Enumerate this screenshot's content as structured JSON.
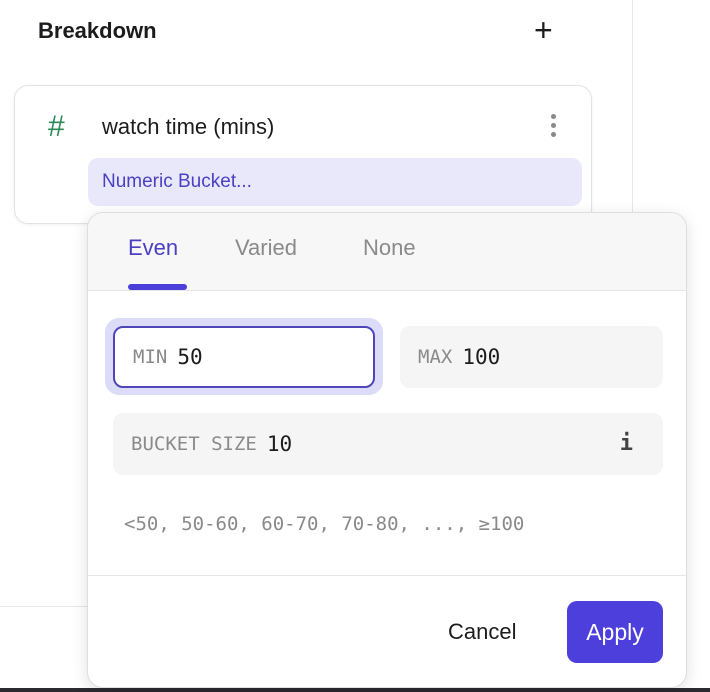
{
  "header": {
    "title": "Breakdown",
    "add_icon": "plus-icon"
  },
  "breakdown_item": {
    "type_icon": "hash-icon",
    "title": "watch time (mins)",
    "menu_icon": "more-vertical-icon",
    "chip_label": "Numeric Bucket..."
  },
  "popover": {
    "tabs": [
      {
        "label": "Even",
        "active": true
      },
      {
        "label": "Varied",
        "active": false
      },
      {
        "label": "None",
        "active": false
      }
    ],
    "min": {
      "label": "MIN",
      "value": "50"
    },
    "max": {
      "label": "MAX",
      "value": "100"
    },
    "bucket_size": {
      "label": "BUCKET SIZE",
      "value": "10",
      "info_icon": "info-icon"
    },
    "preview": "<50, 50-60, 60-70, 70-80, ..., ≥100",
    "cancel_label": "Cancel",
    "apply_label": "Apply"
  },
  "colors": {
    "accent": "#4c3fdc",
    "chip_bg": "#e9e8fb",
    "hash": "#2f8a5a"
  }
}
